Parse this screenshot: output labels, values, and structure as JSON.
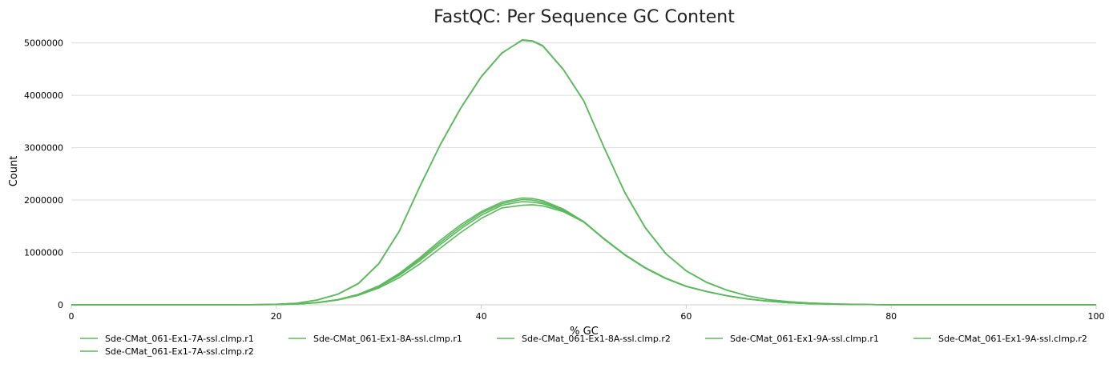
{
  "chart_data": {
    "type": "line",
    "title": "FastQC: Per Sequence GC Content",
    "xlabel": "% GC",
    "ylabel": "Count",
    "xlim": [
      0,
      100
    ],
    "ylim": [
      0,
      5300000
    ],
    "xticks": [
      0,
      20,
      40,
      60,
      80,
      100
    ],
    "yticks": [
      0,
      1000000,
      2000000,
      3000000,
      4000000,
      5000000
    ],
    "grid": true,
    "legend_position": "bottom",
    "line_color": "#5cb85c",
    "series": [
      {
        "name": "Sde-CMat_061-Ex1-7A-ssl.clmp.r1",
        "points": [
          [
            0,
            0
          ],
          [
            16,
            0
          ],
          [
            20,
            10000
          ],
          [
            22,
            30000
          ],
          [
            24,
            90000
          ],
          [
            26,
            200000
          ],
          [
            28,
            400000
          ],
          [
            30,
            780000
          ],
          [
            32,
            1400000
          ],
          [
            34,
            2250000
          ],
          [
            36,
            3050000
          ],
          [
            38,
            3750000
          ],
          [
            40,
            4350000
          ],
          [
            42,
            4800000
          ],
          [
            44,
            5060000
          ],
          [
            45,
            5040000
          ],
          [
            46,
            4950000
          ],
          [
            48,
            4500000
          ],
          [
            50,
            3900000
          ],
          [
            52,
            3000000
          ],
          [
            54,
            2150000
          ],
          [
            56,
            1480000
          ],
          [
            58,
            980000
          ],
          [
            60,
            650000
          ],
          [
            62,
            430000
          ],
          [
            64,
            280000
          ],
          [
            66,
            170000
          ],
          [
            68,
            100000
          ],
          [
            70,
            60000
          ],
          [
            72,
            35000
          ],
          [
            75,
            15000
          ],
          [
            80,
            0
          ],
          [
            100,
            0
          ]
        ]
      },
      {
        "name": "Sde-CMat_061-Ex1-8A-ssl.clmp.r1",
        "points": [
          [
            0,
            0
          ],
          [
            16,
            0
          ],
          [
            20,
            10000
          ],
          [
            22,
            30000
          ],
          [
            24,
            95000
          ],
          [
            26,
            205000
          ],
          [
            28,
            410000
          ],
          [
            30,
            790000
          ],
          [
            32,
            1410000
          ],
          [
            34,
            2260000
          ],
          [
            36,
            3060000
          ],
          [
            38,
            3760000
          ],
          [
            40,
            4360000
          ],
          [
            42,
            4810000
          ],
          [
            44,
            5050000
          ],
          [
            45,
            5030000
          ],
          [
            46,
            4940000
          ],
          [
            48,
            4490000
          ],
          [
            50,
            3890000
          ],
          [
            52,
            2990000
          ],
          [
            54,
            2140000
          ],
          [
            56,
            1470000
          ],
          [
            58,
            975000
          ],
          [
            60,
            645000
          ],
          [
            62,
            425000
          ],
          [
            64,
            275000
          ],
          [
            66,
            168000
          ],
          [
            68,
            98000
          ],
          [
            70,
            58000
          ],
          [
            72,
            34000
          ],
          [
            75,
            14000
          ],
          [
            80,
            0
          ],
          [
            100,
            0
          ]
        ]
      },
      {
        "name": "Sde-CMat_061-Ex1-8A-ssl.clmp.r2",
        "points": [
          [
            0,
            0
          ],
          [
            16,
            0
          ],
          [
            20,
            5000
          ],
          [
            22,
            15000
          ],
          [
            24,
            40000
          ],
          [
            26,
            90000
          ],
          [
            28,
            180000
          ],
          [
            30,
            320000
          ],
          [
            32,
            520000
          ],
          [
            34,
            780000
          ],
          [
            36,
            1080000
          ],
          [
            38,
            1380000
          ],
          [
            40,
            1650000
          ],
          [
            42,
            1850000
          ],
          [
            44,
            1900000
          ],
          [
            45,
            1910000
          ],
          [
            46,
            1890000
          ],
          [
            48,
            1780000
          ],
          [
            50,
            1580000
          ],
          [
            52,
            1250000
          ],
          [
            54,
            950000
          ],
          [
            56,
            700000
          ],
          [
            58,
            500000
          ],
          [
            60,
            350000
          ],
          [
            62,
            250000
          ],
          [
            64,
            170000
          ],
          [
            66,
            110000
          ],
          [
            68,
            70000
          ],
          [
            70,
            40000
          ],
          [
            72,
            25000
          ],
          [
            75,
            10000
          ],
          [
            80,
            0
          ],
          [
            100,
            0
          ]
        ]
      },
      {
        "name": "Sde-CMat_061-Ex1-9A-ssl.clmp.r1",
        "points": [
          [
            0,
            0
          ],
          [
            16,
            0
          ],
          [
            20,
            5000
          ],
          [
            22,
            15000
          ],
          [
            24,
            45000
          ],
          [
            26,
            100000
          ],
          [
            28,
            200000
          ],
          [
            30,
            360000
          ],
          [
            32,
            600000
          ],
          [
            34,
            900000
          ],
          [
            36,
            1230000
          ],
          [
            38,
            1530000
          ],
          [
            40,
            1780000
          ],
          [
            42,
            1960000
          ],
          [
            44,
            2040000
          ],
          [
            45,
            2030000
          ],
          [
            46,
            1990000
          ],
          [
            48,
            1830000
          ],
          [
            50,
            1590000
          ],
          [
            52,
            1260000
          ],
          [
            54,
            960000
          ],
          [
            56,
            710000
          ],
          [
            58,
            510000
          ],
          [
            60,
            355000
          ],
          [
            62,
            255000
          ],
          [
            64,
            172000
          ],
          [
            66,
            112000
          ],
          [
            68,
            71000
          ],
          [
            70,
            41000
          ],
          [
            72,
            26000
          ],
          [
            75,
            10000
          ],
          [
            80,
            0
          ],
          [
            100,
            0
          ]
        ]
      },
      {
        "name": "Sde-CMat_061-Ex1-9A-ssl.clmp.r2",
        "points": [
          [
            0,
            0
          ],
          [
            16,
            0
          ],
          [
            20,
            5000
          ],
          [
            22,
            15000
          ],
          [
            24,
            42000
          ],
          [
            26,
            95000
          ],
          [
            28,
            190000
          ],
          [
            30,
            340000
          ],
          [
            32,
            560000
          ],
          [
            34,
            840000
          ],
          [
            36,
            1150000
          ],
          [
            38,
            1450000
          ],
          [
            40,
            1710000
          ],
          [
            42,
            1900000
          ],
          [
            44,
            1970000
          ],
          [
            45,
            1960000
          ],
          [
            46,
            1930000
          ],
          [
            48,
            1800000
          ],
          [
            50,
            1580000
          ],
          [
            52,
            1255000
          ],
          [
            54,
            955000
          ],
          [
            56,
            705000
          ],
          [
            58,
            505000
          ],
          [
            60,
            352000
          ],
          [
            62,
            252000
          ],
          [
            64,
            171000
          ],
          [
            66,
            111000
          ],
          [
            68,
            70000
          ],
          [
            70,
            40000
          ],
          [
            72,
            25000
          ],
          [
            75,
            10000
          ],
          [
            80,
            0
          ],
          [
            100,
            0
          ]
        ]
      },
      {
        "name": "Sde-CMat_061-Ex1-7A-ssl.clmp.r2",
        "points": [
          [
            0,
            0
          ],
          [
            16,
            0
          ],
          [
            20,
            5000
          ],
          [
            22,
            15000
          ],
          [
            24,
            43000
          ],
          [
            26,
            97000
          ],
          [
            28,
            195000
          ],
          [
            30,
            350000
          ],
          [
            32,
            580000
          ],
          [
            34,
            870000
          ],
          [
            36,
            1190000
          ],
          [
            38,
            1490000
          ],
          [
            40,
            1750000
          ],
          [
            42,
            1930000
          ],
          [
            44,
            2010000
          ],
          [
            45,
            2000000
          ],
          [
            46,
            1960000
          ],
          [
            48,
            1815000
          ],
          [
            50,
            1585000
          ],
          [
            52,
            1258000
          ],
          [
            54,
            958000
          ],
          [
            56,
            708000
          ],
          [
            58,
            508000
          ],
          [
            60,
            354000
          ],
          [
            62,
            254000
          ],
          [
            64,
            172000
          ],
          [
            66,
            111000
          ],
          [
            68,
            70000
          ],
          [
            70,
            40000
          ],
          [
            72,
            25000
          ],
          [
            75,
            10000
          ],
          [
            80,
            0
          ],
          [
            100,
            0
          ]
        ]
      }
    ]
  }
}
